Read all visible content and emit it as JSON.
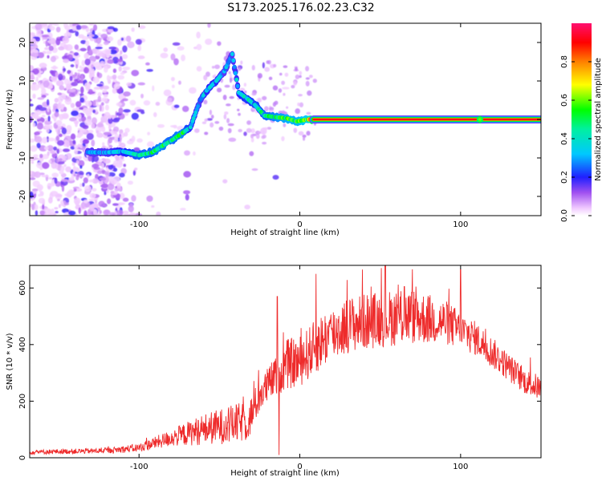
{
  "title": "S173.2025.176.02.23.C32",
  "chart_data": [
    {
      "type": "heatmap",
      "xlabel": "Height of straight line (km)",
      "ylabel": "Frequency (Hz)",
      "xlim": [
        -168,
        150
      ],
      "ylim": [
        -25,
        25
      ],
      "xticks": [
        -100,
        0,
        100
      ],
      "yticks": [
        -20,
        -10,
        0,
        10,
        20
      ],
      "colorbar": {
        "label": "Normalized spectral amplitude",
        "range": [
          0.0,
          1.0
        ],
        "ticks": [
          0.0,
          0.2,
          0.4,
          0.6,
          0.8
        ],
        "tick_labels": [
          "0.0",
          "0.2",
          "0.4",
          "0.6",
          "0.8"
        ]
      },
      "ridge": {
        "description_points": [
          {
            "x": -132,
            "y": -8.5,
            "amp": 0.3
          },
          {
            "x": -122,
            "y": -8.6,
            "amp": 0.3
          },
          {
            "x": -110,
            "y": -8.3,
            "amp": 0.35
          },
          {
            "x": -100,
            "y": -9.3,
            "amp": 0.45
          },
          {
            "x": -92,
            "y": -8.6,
            "amp": 0.45
          },
          {
            "x": -86,
            "y": -7.0,
            "amp": 0.5
          },
          {
            "x": -80,
            "y": -5.5,
            "amp": 0.45
          },
          {
            "x": -73,
            "y": -3.5,
            "amp": 0.5
          },
          {
            "x": -68,
            "y": -2.0,
            "amp": 0.35
          },
          {
            "x": -62,
            "y": 5.0,
            "amp": 0.3
          },
          {
            "x": -58,
            "y": 7.5,
            "amp": 0.35
          },
          {
            "x": -52,
            "y": 10.0,
            "amp": 0.35
          },
          {
            "x": -47,
            "y": 12.5,
            "amp": 0.3
          },
          {
            "x": -42,
            "y": 17.0,
            "amp": 0.3
          },
          {
            "x": -38,
            "y": 7.0,
            "amp": 0.35
          },
          {
            "x": -33,
            "y": 5.5,
            "amp": 0.4
          },
          {
            "x": -28,
            "y": 3.8,
            "amp": 0.4
          },
          {
            "x": -22,
            "y": 1.0,
            "amp": 0.45
          },
          {
            "x": -15,
            "y": 0.6,
            "amp": 0.5
          },
          {
            "x": -8,
            "y": 0.3,
            "amp": 0.55
          },
          {
            "x": -2,
            "y": -0.5,
            "amp": 0.55
          },
          {
            "x": 5,
            "y": 0.0,
            "amp": 0.6
          },
          {
            "x": 8,
            "y": 0.0,
            "amp": 0.95
          },
          {
            "x": 150,
            "y": 0.0,
            "amp": 0.95
          }
        ]
      }
    },
    {
      "type": "line",
      "xlabel": "Height of straight line (km)",
      "ylabel": "SNR (10 * v/v)",
      "xlim": [
        -168,
        150
      ],
      "ylim": [
        0,
        680
      ],
      "xticks": [
        -100,
        0,
        100
      ],
      "yticks": [
        0,
        200,
        400,
        600
      ],
      "color": "#ee2b2b",
      "envelope": {
        "x": [
          -168,
          -120,
          -100,
          -80,
          -60,
          -40,
          -32,
          -25,
          -15,
          -8,
          0,
          15,
          30,
          50,
          70,
          90,
          100,
          110,
          120,
          130,
          140,
          150
        ],
        "y": [
          20,
          25,
          35,
          70,
          100,
          120,
          130,
          220,
          290,
          330,
          340,
          420,
          470,
          490,
          500,
          480,
          450,
          420,
          370,
          320,
          270,
          245
        ],
        "noise": [
          8,
          10,
          15,
          30,
          55,
          70,
          70,
          60,
          70,
          90,
          90,
          100,
          100,
          100,
          100,
          80,
          70,
          60,
          55,
          50,
          45,
          45
        ]
      },
      "spikes": [
        {
          "x": -24,
          "y": 210
        },
        {
          "x": -14,
          "y": 570
        },
        {
          "x": -13,
          "y": 10
        },
        {
          "x": 10,
          "y": 650
        },
        {
          "x": 39,
          "y": 665
        },
        {
          "x": 53,
          "y": 680
        },
        {
          "x": 65,
          "y": 605
        },
        {
          "x": 100,
          "y": 665
        }
      ]
    }
  ]
}
